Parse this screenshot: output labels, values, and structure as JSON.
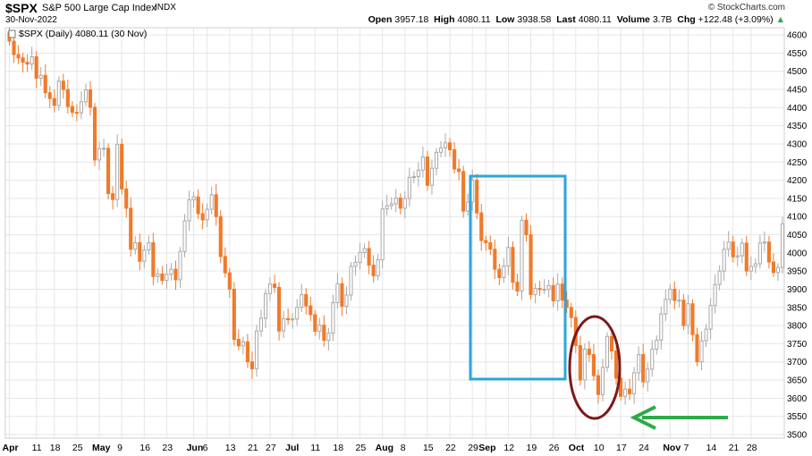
{
  "header": {
    "symbol": "$SPX",
    "name": "S&P 500 Large Cap Index",
    "exchange": "INDX",
    "date": "30-Nov-2022",
    "credit": "© StockCharts.com",
    "open_label": "Open",
    "open": "3957.18",
    "high_label": "High",
    "high": "4080.11",
    "low_label": "Low",
    "low": "3938.58",
    "last_label": "Last",
    "last": "4080.11",
    "volume_label": "Volume",
    "volume": "3.7B",
    "chg_label": "Chg",
    "chg": "+122.48 (+3.09%)",
    "chg_arrow": "▲"
  },
  "legend": {
    "text": "$SPX (Daily) 4080.11 (30 Nov)"
  },
  "colors": {
    "down": "#f07a2a",
    "up_stroke": "#a9a9a9",
    "up_fill": "#ffffff",
    "grid": "#e6e6e6",
    "box": "#2aa6dc",
    "ellipse": "#7a1a1a",
    "arrow": "#2eaa49"
  },
  "chart_data": {
    "type": "candlestick",
    "y_axis_side": "right",
    "ylim": [
      3490,
      4620
    ],
    "y_ticks": [
      3500,
      3550,
      3600,
      3650,
      3700,
      3750,
      3800,
      3850,
      3900,
      3950,
      4000,
      4050,
      4100,
      4150,
      4200,
      4250,
      4300,
      4350,
      4400,
      4450,
      4500,
      4550,
      4600
    ],
    "x_ticks": [
      {
        "label": "Apr",
        "day": 0,
        "bold": true
      },
      {
        "label": "11",
        "day": 6
      },
      {
        "label": "18",
        "day": 10
      },
      {
        "label": "25",
        "day": 15
      },
      {
        "label": "May",
        "day": 20,
        "bold": true
      },
      {
        "label": "9",
        "day": 25
      },
      {
        "label": "16",
        "day": 30
      },
      {
        "label": "23",
        "day": 35
      },
      {
        "label": "Jun",
        "day": 41,
        "bold": true
      },
      {
        "label": "6",
        "day": 44
      },
      {
        "label": "13",
        "day": 49
      },
      {
        "label": "21",
        "day": 54
      },
      {
        "label": "27",
        "day": 58
      },
      {
        "label": "Jul",
        "day": 63,
        "bold": true
      },
      {
        "label": "11",
        "day": 68
      },
      {
        "label": "18",
        "day": 73
      },
      {
        "label": "25",
        "day": 78
      },
      {
        "label": "Aug",
        "day": 83,
        "bold": true
      },
      {
        "label": "8",
        "day": 88
      },
      {
        "label": "15",
        "day": 93
      },
      {
        "label": "22",
        "day": 98
      },
      {
        "label": "29",
        "day": 103
      },
      {
        "label": "Sep",
        "day": 106,
        "bold": true
      },
      {
        "label": "12",
        "day": 111
      },
      {
        "label": "19",
        "day": 116
      },
      {
        "label": "26",
        "day": 121
      },
      {
        "label": "Oct",
        "day": 126,
        "bold": true
      },
      {
        "label": "10",
        "day": 131
      },
      {
        "label": "17",
        "day": 136
      },
      {
        "label": "24",
        "day": 141
      },
      {
        "label": "Nov",
        "day": 147,
        "bold": true
      },
      {
        "label": "7",
        "day": 151
      },
      {
        "label": "14",
        "day": 156
      },
      {
        "label": "21",
        "day": 161
      },
      {
        "label": "28",
        "day": 165
      }
    ],
    "closes": [
      4583,
      4546,
      4537,
      4525,
      4520,
      4540,
      4481,
      4489,
      4441,
      4425,
      4406,
      4473,
      4450,
      4403,
      4387,
      4386,
      4416,
      4449,
      4401,
      4256,
      4287,
      4288,
      4163,
      4147,
      4299,
      4176,
      4123,
      4010,
      4028,
      3977,
      4008,
      4028,
      3935,
      3942,
      3924,
      3941,
      3955,
      3926,
      4004,
      4088,
      4146,
      4154,
      4108,
      4091,
      4120,
      4160,
      4100,
      3990,
      3945,
      3900,
      3762,
      3744,
      3755,
      3700,
      3681,
      3785,
      3820,
      3888,
      3914,
      3905,
      3785,
      3819,
      3816,
      3818,
      3850,
      3885,
      3854,
      3830,
      3784,
      3801,
      3759,
      3779,
      3863,
      3915,
      3853,
      3884,
      3963,
      3974,
      4001,
      4012,
      3966,
      3937,
      3981,
      4121,
      4130,
      4135,
      4151,
      4123,
      4150,
      4208,
      4210,
      4228,
      4264,
      4186,
      4233,
      4277,
      4289,
      4303,
      4284,
      4231,
      4224,
      4115,
      4140,
      4200,
      4110,
      4034,
      4028,
      4010,
      3955,
      3932,
      3964,
      4015,
      3919,
      3895,
      4090,
      4050,
      3885,
      3902,
      3899,
      3900,
      3910,
      3868,
      3914,
      3870,
      3850,
      3822,
      3745,
      3650,
      3735,
      3720,
      3662,
      3610,
      3685,
      3770,
      3730,
      3655,
      3605,
      3625,
      3612,
      3670,
      3720,
      3645,
      3680,
      3735,
      3760,
      3832,
      3872,
      3900,
      3869,
      3870,
      3800,
      3860,
      3775,
      3700,
      3758,
      3790,
      3855,
      3913,
      3950,
      4010,
      4030,
      3989,
      3992,
      4027,
      3950,
      3963,
      3970,
      4027,
      4030,
      3975,
      3946,
      3960,
      4080
    ]
  }
}
